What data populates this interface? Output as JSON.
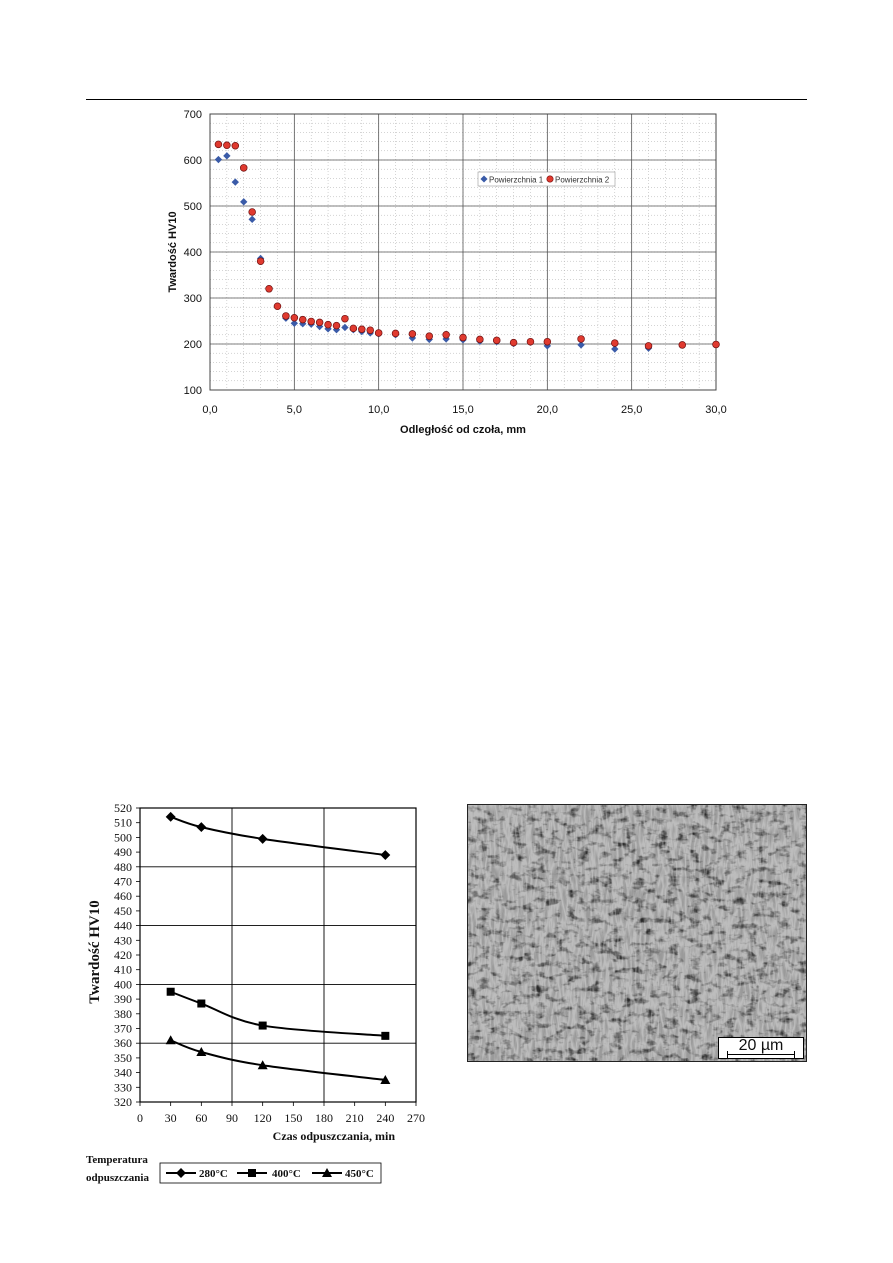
{
  "chart_data": [
    {
      "type": "scatter",
      "title": "",
      "xlabel": "Odległość od czoła, mm",
      "ylabel": "Twardość HV10",
      "xlim": [
        0,
        30
      ],
      "ylim": [
        100,
        700
      ],
      "x_ticks": [
        "0,0",
        "5,0",
        "10,0",
        "15,0",
        "20,0",
        "25,0",
        "30,0"
      ],
      "y_ticks": [
        "100",
        "200",
        "300",
        "400",
        "500",
        "600",
        "700"
      ],
      "grid": true,
      "legend_position": "inside-top-right",
      "series": [
        {
          "name": "Powierzchnia 1",
          "marker": "diamond",
          "color": "#3a5ba8",
          "points": [
            [
              0.5,
              601
            ],
            [
              1.0,
              609
            ],
            [
              1.5,
              552
            ],
            [
              2.0,
              509
            ],
            [
              2.5,
              471
            ],
            [
              3.0,
              386
            ],
            [
              3.5,
              320
            ],
            [
              4.0,
              282
            ],
            [
              4.5,
              256
            ],
            [
              5.0,
              245
            ],
            [
              5.5,
              244
            ],
            [
              6.0,
              243
            ],
            [
              6.5,
              238
            ],
            [
              7.0,
              233
            ],
            [
              7.5,
              231
            ],
            [
              8.0,
              236
            ],
            [
              8.5,
              231
            ],
            [
              9.0,
              227
            ],
            [
              9.5,
              224
            ],
            [
              10.0,
              222
            ],
            [
              11.0,
              220
            ],
            [
              12.0,
              213
            ],
            [
              13.0,
              210
            ],
            [
              14.0,
              211
            ],
            [
              15.0,
              209
            ],
            [
              16.0,
              206
            ],
            [
              17.0,
              205
            ],
            [
              18.0,
              201
            ],
            [
              19.0,
              204
            ],
            [
              20.0,
              196
            ],
            [
              22.0,
              198
            ],
            [
              24.0,
              189
            ],
            [
              26.0,
              191
            ]
          ]
        },
        {
          "name": "Powierzchnia 2",
          "marker": "circle",
          "color": "#e03a2f",
          "points": [
            [
              0.5,
              634
            ],
            [
              1.0,
              632
            ],
            [
              1.5,
              631
            ],
            [
              2.0,
              583
            ],
            [
              2.5,
              487
            ],
            [
              3.0,
              380
            ],
            [
              3.5,
              320
            ],
            [
              4.0,
              282
            ],
            [
              4.5,
              261
            ],
            [
              5.0,
              257
            ],
            [
              5.5,
              253
            ],
            [
              6.0,
              249
            ],
            [
              6.5,
              247
            ],
            [
              7.0,
              242
            ],
            [
              7.5,
              240
            ],
            [
              8.0,
              255
            ],
            [
              8.5,
              234
            ],
            [
              9.0,
              232
            ],
            [
              9.5,
              230
            ],
            [
              10.0,
              224
            ],
            [
              11.0,
              223
            ],
            [
              12.0,
              222
            ],
            [
              13.0,
              217
            ],
            [
              14.0,
              220
            ],
            [
              15.0,
              214
            ],
            [
              16.0,
              210
            ],
            [
              17.0,
              208
            ],
            [
              18.0,
              203
            ],
            [
              19.0,
              205
            ],
            [
              20.0,
              205
            ],
            [
              22.0,
              211
            ],
            [
              24.0,
              202
            ],
            [
              26.0,
              196
            ],
            [
              28.0,
              198
            ],
            [
              30.0,
              199
            ]
          ]
        }
      ]
    },
    {
      "type": "line",
      "title": "",
      "xlabel": "Czas odpuszczania, min",
      "ylabel": "Twardość HV10",
      "xlim": [
        0,
        270
      ],
      "ylim": [
        320,
        520
      ],
      "x_ticks": [
        "0",
        "30",
        "60",
        "90",
        "120",
        "150",
        "180",
        "210",
        "240",
        "270"
      ],
      "y_ticks": [
        "320",
        "330",
        "340",
        "350",
        "360",
        "370",
        "380",
        "390",
        "400",
        "410",
        "420",
        "430",
        "440",
        "450",
        "460",
        "470",
        "480",
        "490",
        "500",
        "510",
        "520"
      ],
      "grid": true,
      "legend_title": "Temperatura odpuszczania",
      "legend_title_lines": [
        "Temperatura",
        "odpuszczania"
      ],
      "legend_position": "bottom",
      "x": [
        30,
        60,
        120,
        240
      ],
      "series": [
        {
          "name": "280°C",
          "marker": "diamond",
          "values": [
            514,
            507,
            499,
            488
          ]
        },
        {
          "name": "400°C",
          "marker": "square",
          "values": [
            395,
            387,
            372,
            365
          ]
        },
        {
          "name": "450°C",
          "marker": "triangle",
          "values": [
            362,
            354,
            345,
            335
          ]
        }
      ]
    }
  ],
  "micrograph": {
    "scale_label": "20 µm"
  }
}
